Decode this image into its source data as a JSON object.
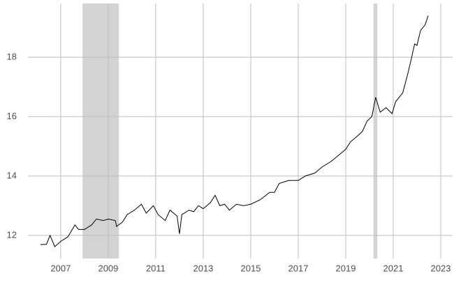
{
  "chart_data": {
    "type": "line",
    "x": [
      2006.15,
      2006.4,
      2006.55,
      2006.75,
      2007.0,
      2007.3,
      2007.6,
      2007.75,
      2008.0,
      2008.3,
      2008.5,
      2008.8,
      2009.0,
      2009.3,
      2009.35,
      2009.6,
      2009.8,
      2010.1,
      2010.4,
      2010.6,
      2010.9,
      2011.1,
      2011.4,
      2011.6,
      2011.9,
      2012.0,
      2012.1,
      2012.4,
      2012.6,
      2012.8,
      2013.0,
      2013.3,
      2013.5,
      2013.7,
      2013.9,
      2014.1,
      2014.4,
      2014.7,
      2015.0,
      2015.4,
      2015.8,
      2016.0,
      2016.2,
      2016.6,
      2017.0,
      2017.3,
      2017.7,
      2018.0,
      2018.4,
      2018.7,
      2019.0,
      2019.2,
      2019.5,
      2019.7,
      2019.9,
      2020.1,
      2020.26,
      2020.45,
      2020.7,
      2020.95,
      2021.1,
      2021.4,
      2021.6,
      2021.75,
      2021.9,
      2022.0,
      2022.15,
      2022.35,
      2022.47
    ],
    "values": [
      11.69,
      11.7,
      12.0,
      11.62,
      11.8,
      11.95,
      12.35,
      12.2,
      12.2,
      12.35,
      12.55,
      12.5,
      12.55,
      12.5,
      12.3,
      12.45,
      12.7,
      12.85,
      13.05,
      12.75,
      13.0,
      12.7,
      12.5,
      12.85,
      12.65,
      12.05,
      12.7,
      12.85,
      12.8,
      13.0,
      12.9,
      13.1,
      13.35,
      13.0,
      13.05,
      12.85,
      13.05,
      13.0,
      13.05,
      13.2,
      13.45,
      13.45,
      13.75,
      13.85,
      13.85,
      14.0,
      14.1,
      14.3,
      14.5,
      14.7,
      14.9,
      15.15,
      15.35,
      15.5,
      15.85,
      16.0,
      16.65,
      16.15,
      16.3,
      16.1,
      16.5,
      16.8,
      17.4,
      17.9,
      18.45,
      18.4,
      18.9,
      19.1,
      19.4
    ],
    "color": "#000000",
    "shaded_periods": [
      [
        2007.92,
        2009.45
      ],
      [
        2020.17,
        2020.33
      ]
    ],
    "shade_color": "#d3d3d3",
    "xlim": [
      2005.62,
      2023.5
    ],
    "xticks": [
      2007,
      2009,
      2011,
      2013,
      2015,
      2017,
      2019,
      2021,
      2023
    ],
    "ylim": [
      11.22,
      19.81
    ],
    "yticks": [
      12,
      14,
      16,
      18
    ],
    "grid": true
  }
}
